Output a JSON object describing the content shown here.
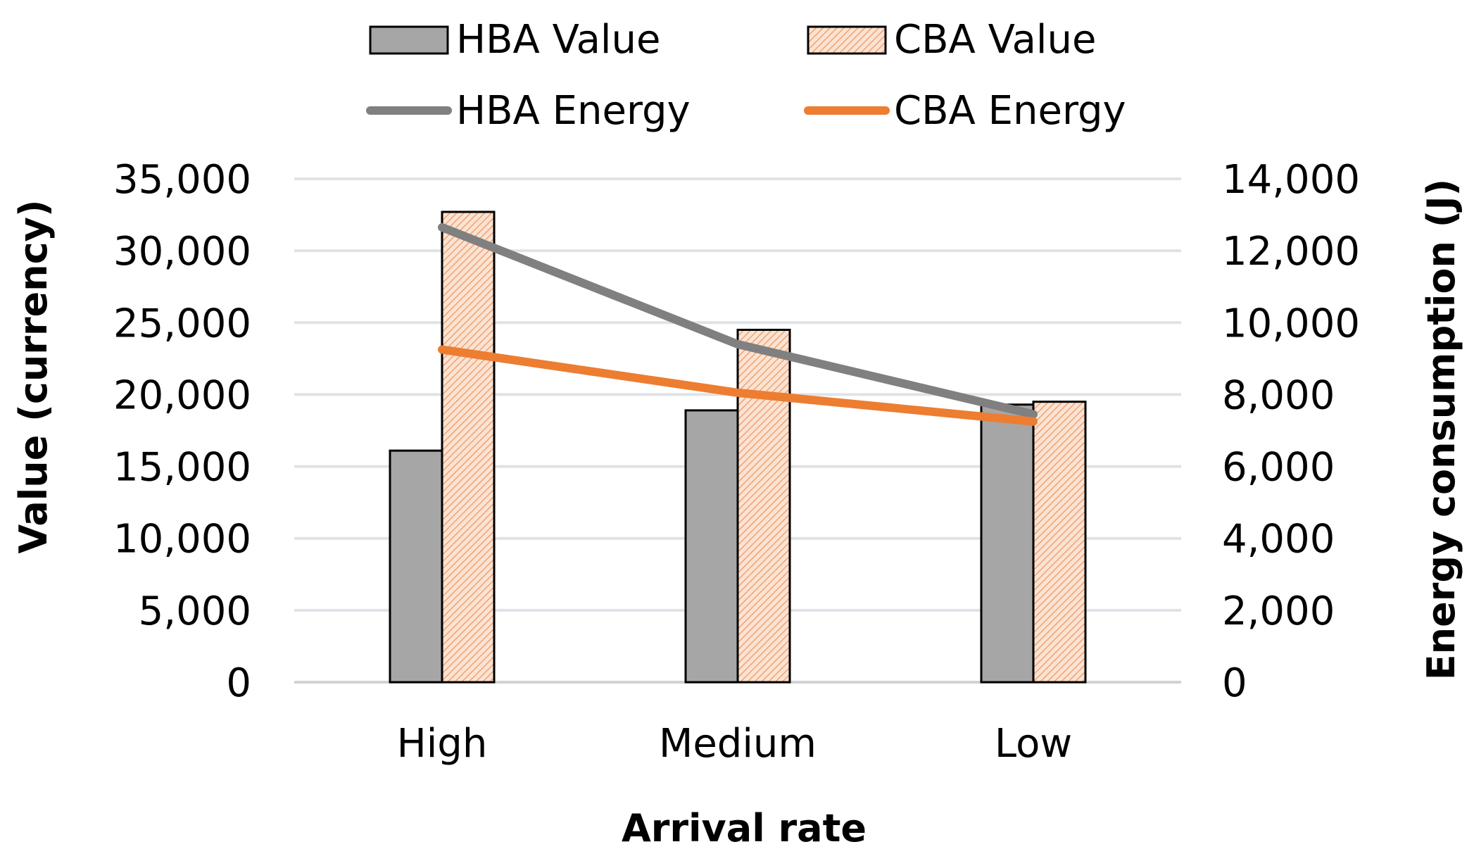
{
  "chart_data": {
    "type": "bar",
    "categories": [
      "High",
      "Medium",
      "Low"
    ],
    "bar_series": [
      {
        "name": "HBA Value",
        "values": [
          16100,
          18900,
          19300
        ],
        "color": "#a6a6a6",
        "pattern": "solid"
      },
      {
        "name": "CBA Value",
        "values": [
          32700,
          24500,
          19500
        ],
        "color": "#f4b183",
        "pattern": "hatched"
      }
    ],
    "line_series": [
      {
        "name": "HBA Energy",
        "values": [
          12650,
          9400,
          7450
        ],
        "color": "#808080",
        "axis": "right"
      },
      {
        "name": "CBA Energy",
        "values": [
          9250,
          8050,
          7250
        ],
        "color": "#ed7d31",
        "axis": "right"
      }
    ],
    "xlabel": "Arrival rate",
    "ylabel": "Value (currency)",
    "y2label": "Energy consumption (J)",
    "ylim": [
      0,
      35000
    ],
    "y2lim": [
      0,
      14000
    ],
    "yticks": [
      "0",
      "5,000",
      "10,000",
      "15,000",
      "20,000",
      "25,000",
      "30,000",
      "35,000"
    ],
    "y2ticks": [
      "0",
      "2,000",
      "4,000",
      "6,000",
      "8,000",
      "10,000",
      "12,000",
      "14,000"
    ],
    "grid": true,
    "legend": "top"
  }
}
